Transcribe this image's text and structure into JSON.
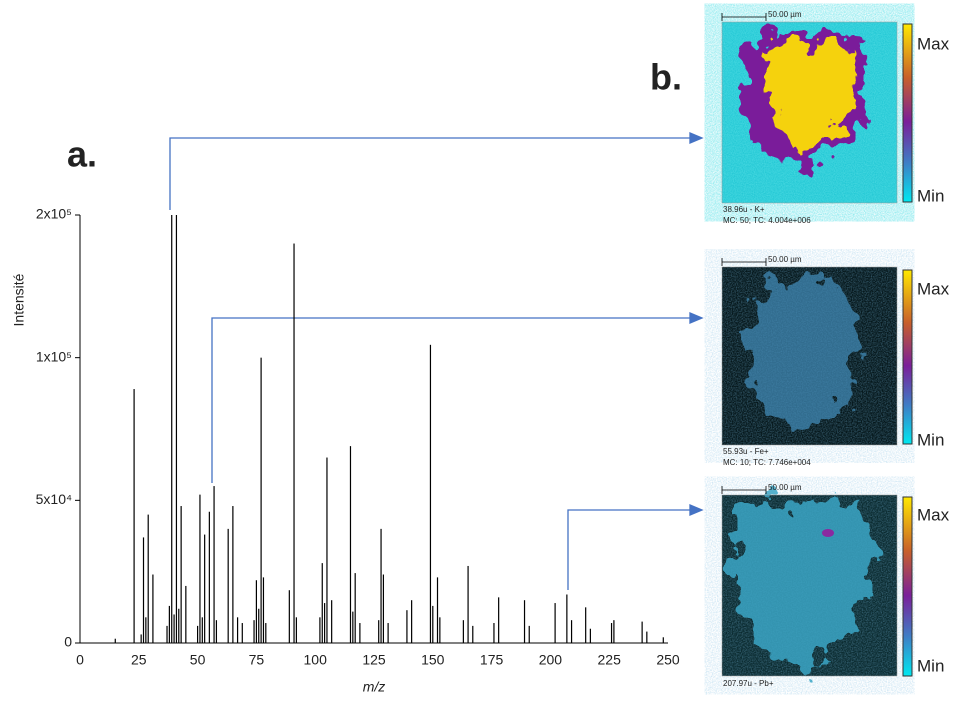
{
  "chart_data": {
    "type": "bar",
    "x_label": "m/z",
    "y_label": "Intensité",
    "x": [
      15,
      23,
      26,
      27,
      28,
      29,
      31,
      37,
      38,
      39,
      40,
      41,
      42,
      43,
      45,
      50,
      51,
      52,
      53,
      55,
      57,
      58,
      63,
      65,
      67,
      69,
      74,
      75,
      76,
      77,
      78,
      79,
      89,
      91,
      92,
      102,
      103,
      104,
      105,
      107,
      115,
      116,
      117,
      119,
      127,
      128,
      129,
      131,
      139,
      141,
      149,
      150,
      152,
      153,
      163,
      165,
      167,
      176,
      178,
      189,
      191,
      202,
      207,
      209,
      215,
      217,
      226,
      227,
      239,
      241,
      248
    ],
    "values": [
      1500,
      89000,
      3000,
      37000,
      9000,
      45000,
      24000,
      6000,
      13000,
      200000,
      10000,
      200000,
      12000,
      48000,
      20000,
      6000,
      52000,
      9000,
      38000,
      46000,
      55000,
      8000,
      40000,
      48000,
      9000,
      7000,
      8000,
      22000,
      12000,
      100000,
      23000,
      7000,
      18500,
      180000,
      9000,
      9000,
      28000,
      14000,
      65000,
      15000,
      69000,
      11000,
      24500,
      7000,
      8000,
      40000,
      24000,
      7000,
      11500,
      15000,
      109000,
      13000,
      23000,
      9000,
      8000,
      27000,
      6000,
      7000,
      16000,
      15000,
      6000,
      14000,
      17000,
      8000,
      12500,
      5000,
      7000,
      8000,
      7500,
      4000,
      2000
    ],
    "color": "#000000",
    "xlim": [
      0,
      250
    ],
    "xticks": [
      0,
      25,
      50,
      75,
      100,
      125,
      150,
      175,
      200,
      225,
      250
    ],
    "ylim": [
      0,
      200000
    ],
    "yticks": [
      0,
      {
        "value": 50000,
        "label": "5x10⁴"
      },
      {
        "value": 100000,
        "label": "1x10⁵"
      },
      {
        "value": 200000,
        "label": "2x10⁵"
      }
    ],
    "grid": false
  },
  "panels": {
    "a": "a.",
    "b": "b."
  },
  "colorbar": {
    "max": "Max",
    "min": "Min"
  },
  "images": [
    {
      "scale": "50.00 µm",
      "caption": [
        "38.96u - K+",
        "MC:   50; TC: 4.004e+006"
      ]
    },
    {
      "scale": "50.00 µm",
      "caption": [
        "55.93u - Fe+",
        "MC:   10; TC: 7.746e+004"
      ]
    },
    {
      "scale": "50.00 µm",
      "caption": [
        "207.97u - Pb+"
      ]
    }
  ]
}
